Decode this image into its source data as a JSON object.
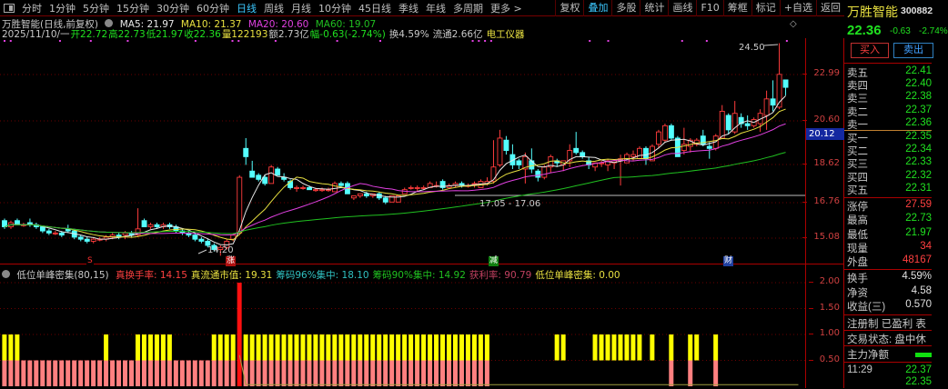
{
  "toolbar": {
    "tabs": [
      "分时",
      "1分钟",
      "5分钟",
      "15分钟",
      "30分钟",
      "60分钟",
      "日线",
      "周线",
      "月线",
      "10分钟",
      "45日线",
      "季线",
      "年线",
      "多周期",
      "更多 >"
    ],
    "active": "日线",
    "right": [
      "复权",
      "叠加",
      "多股",
      "统计",
      "画线",
      "F10",
      "筹框",
      "标记",
      "+自选",
      "返回"
    ],
    "right_active": "叠加"
  },
  "info": {
    "name": "万胜智能(日线,前复权)",
    "ma5": "MA5: 21.97",
    "ma10": "MA10: 21.37",
    "ma20": "MA20: 20.60",
    "ma60": "MA60: 19.07",
    "date": "2025/11/10/一",
    "open": "开22.72",
    "high": "高22.73",
    "low": "低21.97",
    "close": "收22.36",
    "vol": "量122193",
    "amount": "额2.73亿",
    "change": "幅-0.63(-2.74%)",
    "turnover": "换4.59%",
    "float": "流通2.66亿",
    "industry": "电工仪器"
  },
  "colors": {
    "up": "#ff3c3c",
    "down": "#54ffff",
    "ma5": "#e8e8e8",
    "ma10": "#e8e040",
    "ma20": "#e040e0",
    "ma60": "#20c020"
  },
  "axis": {
    "labels": [
      "22.99",
      "20.60",
      "18.62",
      "16.76",
      "15.08"
    ],
    "current": "20.12"
  },
  "annotations": {
    "high": "24.50",
    "low": "14.20",
    "range": "17.05 - 17.06",
    "marks": [
      "S",
      "涨",
      "减",
      "财"
    ]
  },
  "kline": [
    [
      15.9,
      16.0,
      15.5,
      15.6
    ],
    [
      15.6,
      15.9,
      15.5,
      15.8
    ],
    [
      15.9,
      16.0,
      15.7,
      15.7
    ],
    [
      15.7,
      15.8,
      15.6,
      15.7
    ],
    [
      15.8,
      16.0,
      15.6,
      15.7
    ],
    [
      15.7,
      15.8,
      15.5,
      15.6
    ],
    [
      15.6,
      15.6,
      15.3,
      15.4
    ],
    [
      15.4,
      15.5,
      15.2,
      15.3
    ],
    [
      15.3,
      15.4,
      15.2,
      15.3
    ],
    [
      15.3,
      15.4,
      15.1,
      15.2
    ],
    [
      15.5,
      15.7,
      15.3,
      15.4
    ],
    [
      15.4,
      15.5,
      15.0,
      15.1
    ],
    [
      15.1,
      15.2,
      14.9,
      15.0
    ],
    [
      15.0,
      15.1,
      14.8,
      14.9
    ],
    [
      14.9,
      15.1,
      14.8,
      15.0
    ],
    [
      15.0,
      15.1,
      14.9,
      15.0
    ],
    [
      15.0,
      15.2,
      14.9,
      15.1
    ],
    [
      15.1,
      15.3,
      15.0,
      15.2
    ],
    [
      15.2,
      15.3,
      15.0,
      15.1
    ],
    [
      15.2,
      15.4,
      15.0,
      15.3
    ],
    [
      15.3,
      15.4,
      15.1,
      15.2
    ],
    [
      15.2,
      16.5,
      15.1,
      15.5
    ],
    [
      15.9,
      16.0,
      15.6,
      15.6
    ],
    [
      15.6,
      15.8,
      15.5,
      15.7
    ],
    [
      15.7,
      15.8,
      15.5,
      15.6
    ],
    [
      15.6,
      15.8,
      15.5,
      15.7
    ],
    [
      15.7,
      15.8,
      15.5,
      15.6
    ],
    [
      15.6,
      15.7,
      15.3,
      15.4
    ],
    [
      15.4,
      15.5,
      15.2,
      15.3
    ],
    [
      15.3,
      15.4,
      15.1,
      15.2
    ],
    [
      15.2,
      15.3,
      14.9,
      15.0
    ],
    [
      15.0,
      15.1,
      14.8,
      14.9
    ],
    [
      14.9,
      15.0,
      14.6,
      14.7
    ],
    [
      14.7,
      14.8,
      14.4,
      14.5
    ],
    [
      14.5,
      14.7,
      14.2,
      14.6
    ],
    [
      14.6,
      15.0,
      14.5,
      14.9
    ],
    [
      15.0,
      15.3,
      14.9,
      15.2
    ],
    [
      15.3,
      18.1,
      15.2,
      18.0
    ],
    [
      19.4,
      19.9,
      18.6,
      19.0
    ],
    [
      18.3,
      18.8,
      18.0,
      18.0
    ],
    [
      18.1,
      18.2,
      17.8,
      17.9
    ],
    [
      18.0,
      18.1,
      17.6,
      17.7
    ],
    [
      17.7,
      18.6,
      17.7,
      18.5
    ],
    [
      18.4,
      18.5,
      18.1,
      18.1
    ],
    [
      18.0,
      18.2,
      17.8,
      17.9
    ],
    [
      17.8,
      17.9,
      17.4,
      17.5
    ],
    [
      17.5,
      17.6,
      17.3,
      17.5
    ],
    [
      17.5,
      17.6,
      17.4,
      17.5
    ],
    [
      17.5,
      17.6,
      17.4,
      17.4
    ],
    [
      17.4,
      17.5,
      17.3,
      17.4
    ],
    [
      17.4,
      17.5,
      17.3,
      17.4
    ],
    [
      17.4,
      17.5,
      17.3,
      17.4
    ],
    [
      17.3,
      17.8,
      17.3,
      17.7
    ],
    [
      17.7,
      17.8,
      17.5,
      17.6
    ],
    [
      17.7,
      17.8,
      17.2,
      17.2
    ],
    [
      17.0,
      17.1,
      16.9,
      17.1
    ],
    [
      17.1,
      17.2,
      17.0,
      17.2
    ],
    [
      17.2,
      17.3,
      17.0,
      17.1
    ],
    [
      17.1,
      17.2,
      17.0,
      17.2
    ],
    [
      17.2,
      17.3,
      16.9,
      17.0
    ],
    [
      17.0,
      17.1,
      16.7,
      16.8
    ],
    [
      16.8,
      17.1,
      16.8,
      17.1
    ],
    [
      16.8,
      17.1,
      16.8,
      17.1
    ],
    [
      17.2,
      17.5,
      17.2,
      17.4
    ],
    [
      17.5,
      17.6,
      17.4,
      17.5
    ],
    [
      17.5,
      17.6,
      17.3,
      17.5
    ],
    [
      17.5,
      17.6,
      17.4,
      17.5
    ],
    [
      17.5,
      17.8,
      17.5,
      17.7
    ],
    [
      17.6,
      17.8,
      17.5,
      17.6
    ],
    [
      17.8,
      17.9,
      17.4,
      17.5
    ],
    [
      17.5,
      17.7,
      17.5,
      17.6
    ],
    [
      17.6,
      17.8,
      17.5,
      17.7
    ],
    [
      17.7,
      17.8,
      17.5,
      17.6
    ],
    [
      17.6,
      17.7,
      17.5,
      17.6
    ],
    [
      17.7,
      17.8,
      17.5,
      17.7
    ],
    [
      17.5,
      17.9,
      17.5,
      17.8
    ],
    [
      17.7,
      18.0,
      17.6,
      17.8
    ],
    [
      17.8,
      19.8,
      17.7,
      18.5
    ],
    [
      18.6,
      20.3,
      18.5,
      19.9
    ],
    [
      19.8,
      20.0,
      19.1,
      19.3
    ],
    [
      19.1,
      19.6,
      18.4,
      18.6
    ],
    [
      18.8,
      18.9,
      18.4,
      18.6
    ],
    [
      18.4,
      19.2,
      17.7,
      19.0
    ],
    [
      18.8,
      19.4,
      18.2,
      18.4
    ],
    [
      18.3,
      18.4,
      17.8,
      18.0
    ],
    [
      18.0,
      18.6,
      17.9,
      18.5
    ],
    [
      18.5,
      19.1,
      18.2,
      19.0
    ],
    [
      18.8,
      18.9,
      18.5,
      18.7
    ],
    [
      18.6,
      18.8,
      18.3,
      18.8
    ],
    [
      18.8,
      19.6,
      18.5,
      19.3
    ],
    [
      19.4,
      20.2,
      19.1,
      19.2
    ],
    [
      19.2,
      19.3,
      18.9,
      19.0
    ],
    [
      18.8,
      19.0,
      18.4,
      18.6
    ],
    [
      18.5,
      18.7,
      18.3,
      18.7
    ],
    [
      18.7,
      18.8,
      18.5,
      18.7
    ],
    [
      18.6,
      18.9,
      18.3,
      18.8
    ],
    [
      18.7,
      18.8,
      18.4,
      18.8
    ],
    [
      18.8,
      19.1,
      17.6,
      18.9
    ],
    [
      18.7,
      19.2,
      18.7,
      19.1
    ],
    [
      19.0,
      19.3,
      18.8,
      19.1
    ],
    [
      18.9,
      19.5,
      18.9,
      19.4
    ],
    [
      19.4,
      19.5,
      18.6,
      18.9
    ],
    [
      18.8,
      19.6,
      18.8,
      19.5
    ],
    [
      19.6,
      20.3,
      19.4,
      20.2
    ],
    [
      19.8,
      20.6,
      19.7,
      20.5
    ],
    [
      20.5,
      20.6,
      19.8,
      19.9
    ],
    [
      19.9,
      20.0,
      19.0,
      19.0
    ],
    [
      19.3,
      20.4,
      19.1,
      19.6
    ],
    [
      19.5,
      19.9,
      19.2,
      19.8
    ],
    [
      19.6,
      19.9,
      19.5,
      19.8
    ],
    [
      20.0,
      20.3,
      19.5,
      19.6
    ],
    [
      19.5,
      19.7,
      18.9,
      19.4
    ],
    [
      19.4,
      20.1,
      19.3,
      20.0
    ],
    [
      19.9,
      21.5,
      19.9,
      21.2
    ],
    [
      21.0,
      21.1,
      20.1,
      20.3
    ],
    [
      20.2,
      21.7,
      20.1,
      21.1
    ],
    [
      20.9,
      21.1,
      20.4,
      20.6
    ],
    [
      20.6,
      21.0,
      20.3,
      20.5
    ],
    [
      20.5,
      20.9,
      20.4,
      20.8
    ],
    [
      20.6,
      21.3,
      20.2,
      21.1
    ],
    [
      21.0,
      22.2,
      20.3,
      21.8
    ],
    [
      21.8,
      22.7,
      21.2,
      21.5
    ],
    [
      21.4,
      24.5,
      21.3,
      22.99
    ],
    [
      22.72,
      22.73,
      21.97,
      22.36
    ]
  ],
  "signal_dots": [
    0,
    1,
    9,
    14,
    20,
    31,
    37,
    38,
    44,
    54,
    61,
    76,
    77,
    78,
    79,
    95,
    98,
    110,
    114,
    127
  ],
  "indicator": {
    "title": "低位单峰密集(80,15)",
    "values": [
      {
        "label": "真换手率: 14.15",
        "color": "#ff4040"
      },
      {
        "label": "真流通市值: 19.31",
        "color": "#e8e040"
      },
      {
        "label": "筹码96%集中: 18.10",
        "color": "#30c0c0"
      },
      {
        "label": "筹码90%集中: 14.92",
        "color": "#20c020"
      },
      {
        "label": "获利率: 90.79",
        "color": "#c04060"
      },
      {
        "label": "低位单峰密集: 0.00",
        "color": "#e8e040"
      }
    ],
    "axis": [
      "2.00",
      "1.50",
      "1.00",
      "0.50"
    ],
    "pink_bars": [
      0,
      76
    ],
    "pink_extra": [
      105,
      108,
      112
    ],
    "yellow_bars": [
      0,
      1,
      2,
      16,
      33,
      34,
      35,
      36,
      37,
      38,
      39,
      40,
      41,
      42,
      43,
      44,
      45,
      46,
      47,
      48,
      49,
      50,
      51,
      52,
      53,
      54,
      55,
      56,
      57,
      58,
      59,
      60,
      61,
      62,
      63,
      64,
      65,
      66,
      67,
      68,
      69,
      70,
      71,
      72,
      73,
      74,
      75,
      76,
      87,
      88,
      93,
      94,
      95,
      96,
      97,
      98,
      99,
      100,
      102,
      105,
      108,
      109,
      112
    ],
    "extra_yellow_early": [
      21,
      22,
      23,
      24,
      25,
      26
    ],
    "spike_index": 37,
    "spike_value": 2.0
  },
  "quote": {
    "name": "万胜智能",
    "code": "300882",
    "price": "22.36",
    "change": "-0.63",
    "pct": "-2.74%",
    "buy": "买入",
    "sell": "卖出",
    "asks": [
      {
        "l": "卖五",
        "v": "22.41"
      },
      {
        "l": "卖四",
        "v": "22.40"
      },
      {
        "l": "卖三",
        "v": "22.38"
      },
      {
        "l": "卖二",
        "v": "22.37"
      },
      {
        "l": "卖一",
        "v": "22.36"
      }
    ],
    "bids": [
      {
        "l": "买一",
        "v": "22.35"
      },
      {
        "l": "买二",
        "v": "22.34"
      },
      {
        "l": "买三",
        "v": "22.33"
      },
      {
        "l": "买四",
        "v": "22.32"
      },
      {
        "l": "买五",
        "v": "22.31"
      }
    ],
    "stats": [
      {
        "l": "涨停",
        "v": "27.59",
        "c": "#ff4040"
      },
      {
        "l": "最高",
        "v": "22.73",
        "c": "#20e020"
      },
      {
        "l": "最低",
        "v": "21.97",
        "c": "#20e020"
      },
      {
        "l": "现量",
        "v": "34",
        "c": "#ff4040"
      },
      {
        "l": "外盘",
        "v": "48167",
        "c": "#ff4040"
      }
    ],
    "stats2": [
      {
        "l": "换手",
        "v": "4.59%",
        "c": "#e0e0e0"
      },
      {
        "l": "净资",
        "v": "4.58",
        "c": "#e0e0e0"
      },
      {
        "l": "收益(三)",
        "v": "0.570",
        "c": "#e0e0e0"
      }
    ],
    "reg": "注册制 已盈利 表",
    "status": "交易状态: 盘中休",
    "netflow": "主力净额",
    "time": "11:29",
    "tick1": "22.37",
    "tick2": "22.35"
  }
}
